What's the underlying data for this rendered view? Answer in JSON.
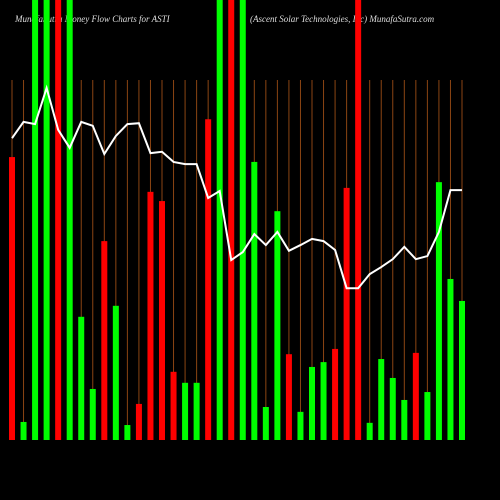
{
  "chart_data": {
    "type": "bar",
    "title": "MunafaSutra Money Flow Charts for ASTI",
    "subtitle": "(Ascent Solar Technologies, Inc) MunafaSutra.com",
    "values": [
      64.3,
      4.1,
      100,
      100,
      100,
      100,
      28,
      11.6,
      45.2,
      30.5,
      3.4,
      8.2,
      56.4,
      54.3,
      15.5,
      13,
      13,
      72.9,
      100,
      100,
      100,
      63.2,
      7.5,
      52,
      19.5,
      6.4,
      16.6,
      17.7,
      20.7,
      57.3,
      100,
      3.9,
      18.4,
      14.1,
      9.1,
      19.8,
      10.9,
      58.6,
      36.6,
      31.6
    ],
    "colors": [
      "#ff0000",
      "#00ff00",
      "#00ff00",
      "#00ff00",
      "#ff0000",
      "#00ff00",
      "#00ff00",
      "#00ff00",
      "#ff0000",
      "#00ff00",
      "#00ff00",
      "#ff0000",
      "#ff0000",
      "#ff0000",
      "#ff0000",
      "#00ff00",
      "#00ff00",
      "#ff0000",
      "#00ff00",
      "#ff0000",
      "#00ff00",
      "#00ff00",
      "#00ff00",
      "#00ff00",
      "#ff0000",
      "#00ff00",
      "#00ff00",
      "#00ff00",
      "#ff0000",
      "#ff0000",
      "#ff0000",
      "#00ff00",
      "#00ff00",
      "#00ff00",
      "#00ff00",
      "#ff0000",
      "#00ff00",
      "#00ff00",
      "#00ff00",
      "#00ff00"
    ],
    "line": {
      "color": "#ffffff",
      "values": [
        68.6,
        72.3,
        71.8,
        80,
        70.5,
        66.4,
        72.3,
        71.4,
        65,
        69.1,
        71.8,
        72,
        65.2,
        65.5,
        63.2,
        62.7,
        62.7,
        55,
        56.6,
        40.9,
        42.7,
        46.8,
        44.3,
        47.3,
        43,
        44.3,
        45.7,
        45.2,
        43.2,
        34.5,
        34.5,
        37.7,
        39.3,
        41.1,
        43.9,
        41.1,
        41.8,
        47.3,
        56.8,
        56.8
      ]
    },
    "gridline_color": "#8b4513",
    "ylim": [
      0,
      100
    ]
  }
}
